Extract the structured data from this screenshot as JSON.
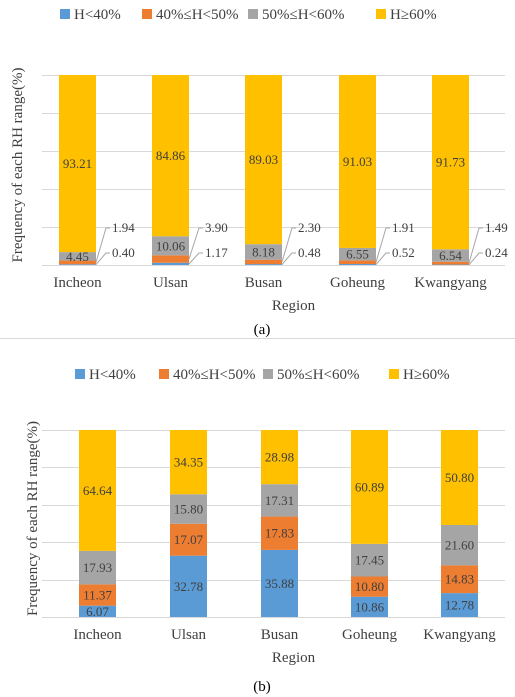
{
  "colors": {
    "H_lt_40": "#5b9bd5",
    "H_40_50": "#ed7d31",
    "H_50_60": "#a5a5a5",
    "H_ge_60": "#ffc000",
    "grid": "#d9d9d9",
    "text": "#404040",
    "leader": "#a6a6a6"
  },
  "chart_data": [
    {
      "type": "bar",
      "stacked": true,
      "caption": "(a)",
      "xlabel": "Region",
      "ylabel": "Frequency of each RH range(%)",
      "ylim": [
        0,
        100
      ],
      "grid": true,
      "legend_position": "top",
      "categories": [
        "Incheon",
        "Ulsan",
        "Busan",
        "Goheung",
        "Kwangyang"
      ],
      "series": [
        {
          "name": "H<40%",
          "values": [
            0.4,
            1.17,
            0.48,
            0.52,
            0.24
          ],
          "labels": [
            "0.40",
            "1.17",
            "0.48",
            "0.52",
            "0.24"
          ]
        },
        {
          "name": "40%≤H<50%",
          "values": [
            1.94,
            3.9,
            2.3,
            1.91,
            1.49
          ],
          "labels": [
            "1.94",
            "3.90",
            "2.30",
            "1.91",
            "1.49"
          ]
        },
        {
          "name": "50%≤H<60%",
          "values": [
            4.45,
            10.06,
            8.18,
            6.55,
            6.54
          ],
          "labels": [
            "4.45",
            "10.06",
            "8.18",
            "6.55",
            "6.54"
          ]
        },
        {
          "name": "H≥60%",
          "values": [
            93.21,
            84.86,
            89.03,
            91.03,
            91.73
          ],
          "labels": [
            "93.21",
            "84.86",
            "89.03",
            "91.03",
            "91.73"
          ]
        }
      ]
    },
    {
      "type": "bar",
      "stacked": true,
      "caption": "(b)",
      "xlabel": "Region",
      "ylabel": "Frequency of each RH range(%)",
      "ylim": [
        0,
        100
      ],
      "grid": true,
      "legend_position": "top",
      "categories": [
        "Incheon",
        "Ulsan",
        "Busan",
        "Goheung",
        "Kwangyang"
      ],
      "series": [
        {
          "name": "H<40%",
          "values": [
            6.07,
            32.78,
            35.88,
            10.86,
            12.78
          ],
          "labels": [
            "6.07",
            "32.78",
            "35.88",
            "10.86",
            "12.78"
          ]
        },
        {
          "name": "40%≤H<50%",
          "values": [
            11.37,
            17.07,
            17.83,
            10.8,
            14.83
          ],
          "labels": [
            "11.37",
            "17.07",
            "17.83",
            "10.80",
            "14.83"
          ]
        },
        {
          "name": "50%≤H<60%",
          "values": [
            17.93,
            15.8,
            17.31,
            17.45,
            21.6
          ],
          "labels": [
            "17.93",
            "15.80",
            "17.31",
            "17.45",
            "21.60"
          ]
        },
        {
          "name": "H≥60%",
          "values": [
            64.64,
            34.35,
            28.98,
            60.89,
            50.8
          ],
          "labels": [
            "64.64",
            "34.35",
            "28.98",
            "60.89",
            "50.80"
          ]
        }
      ]
    }
  ]
}
